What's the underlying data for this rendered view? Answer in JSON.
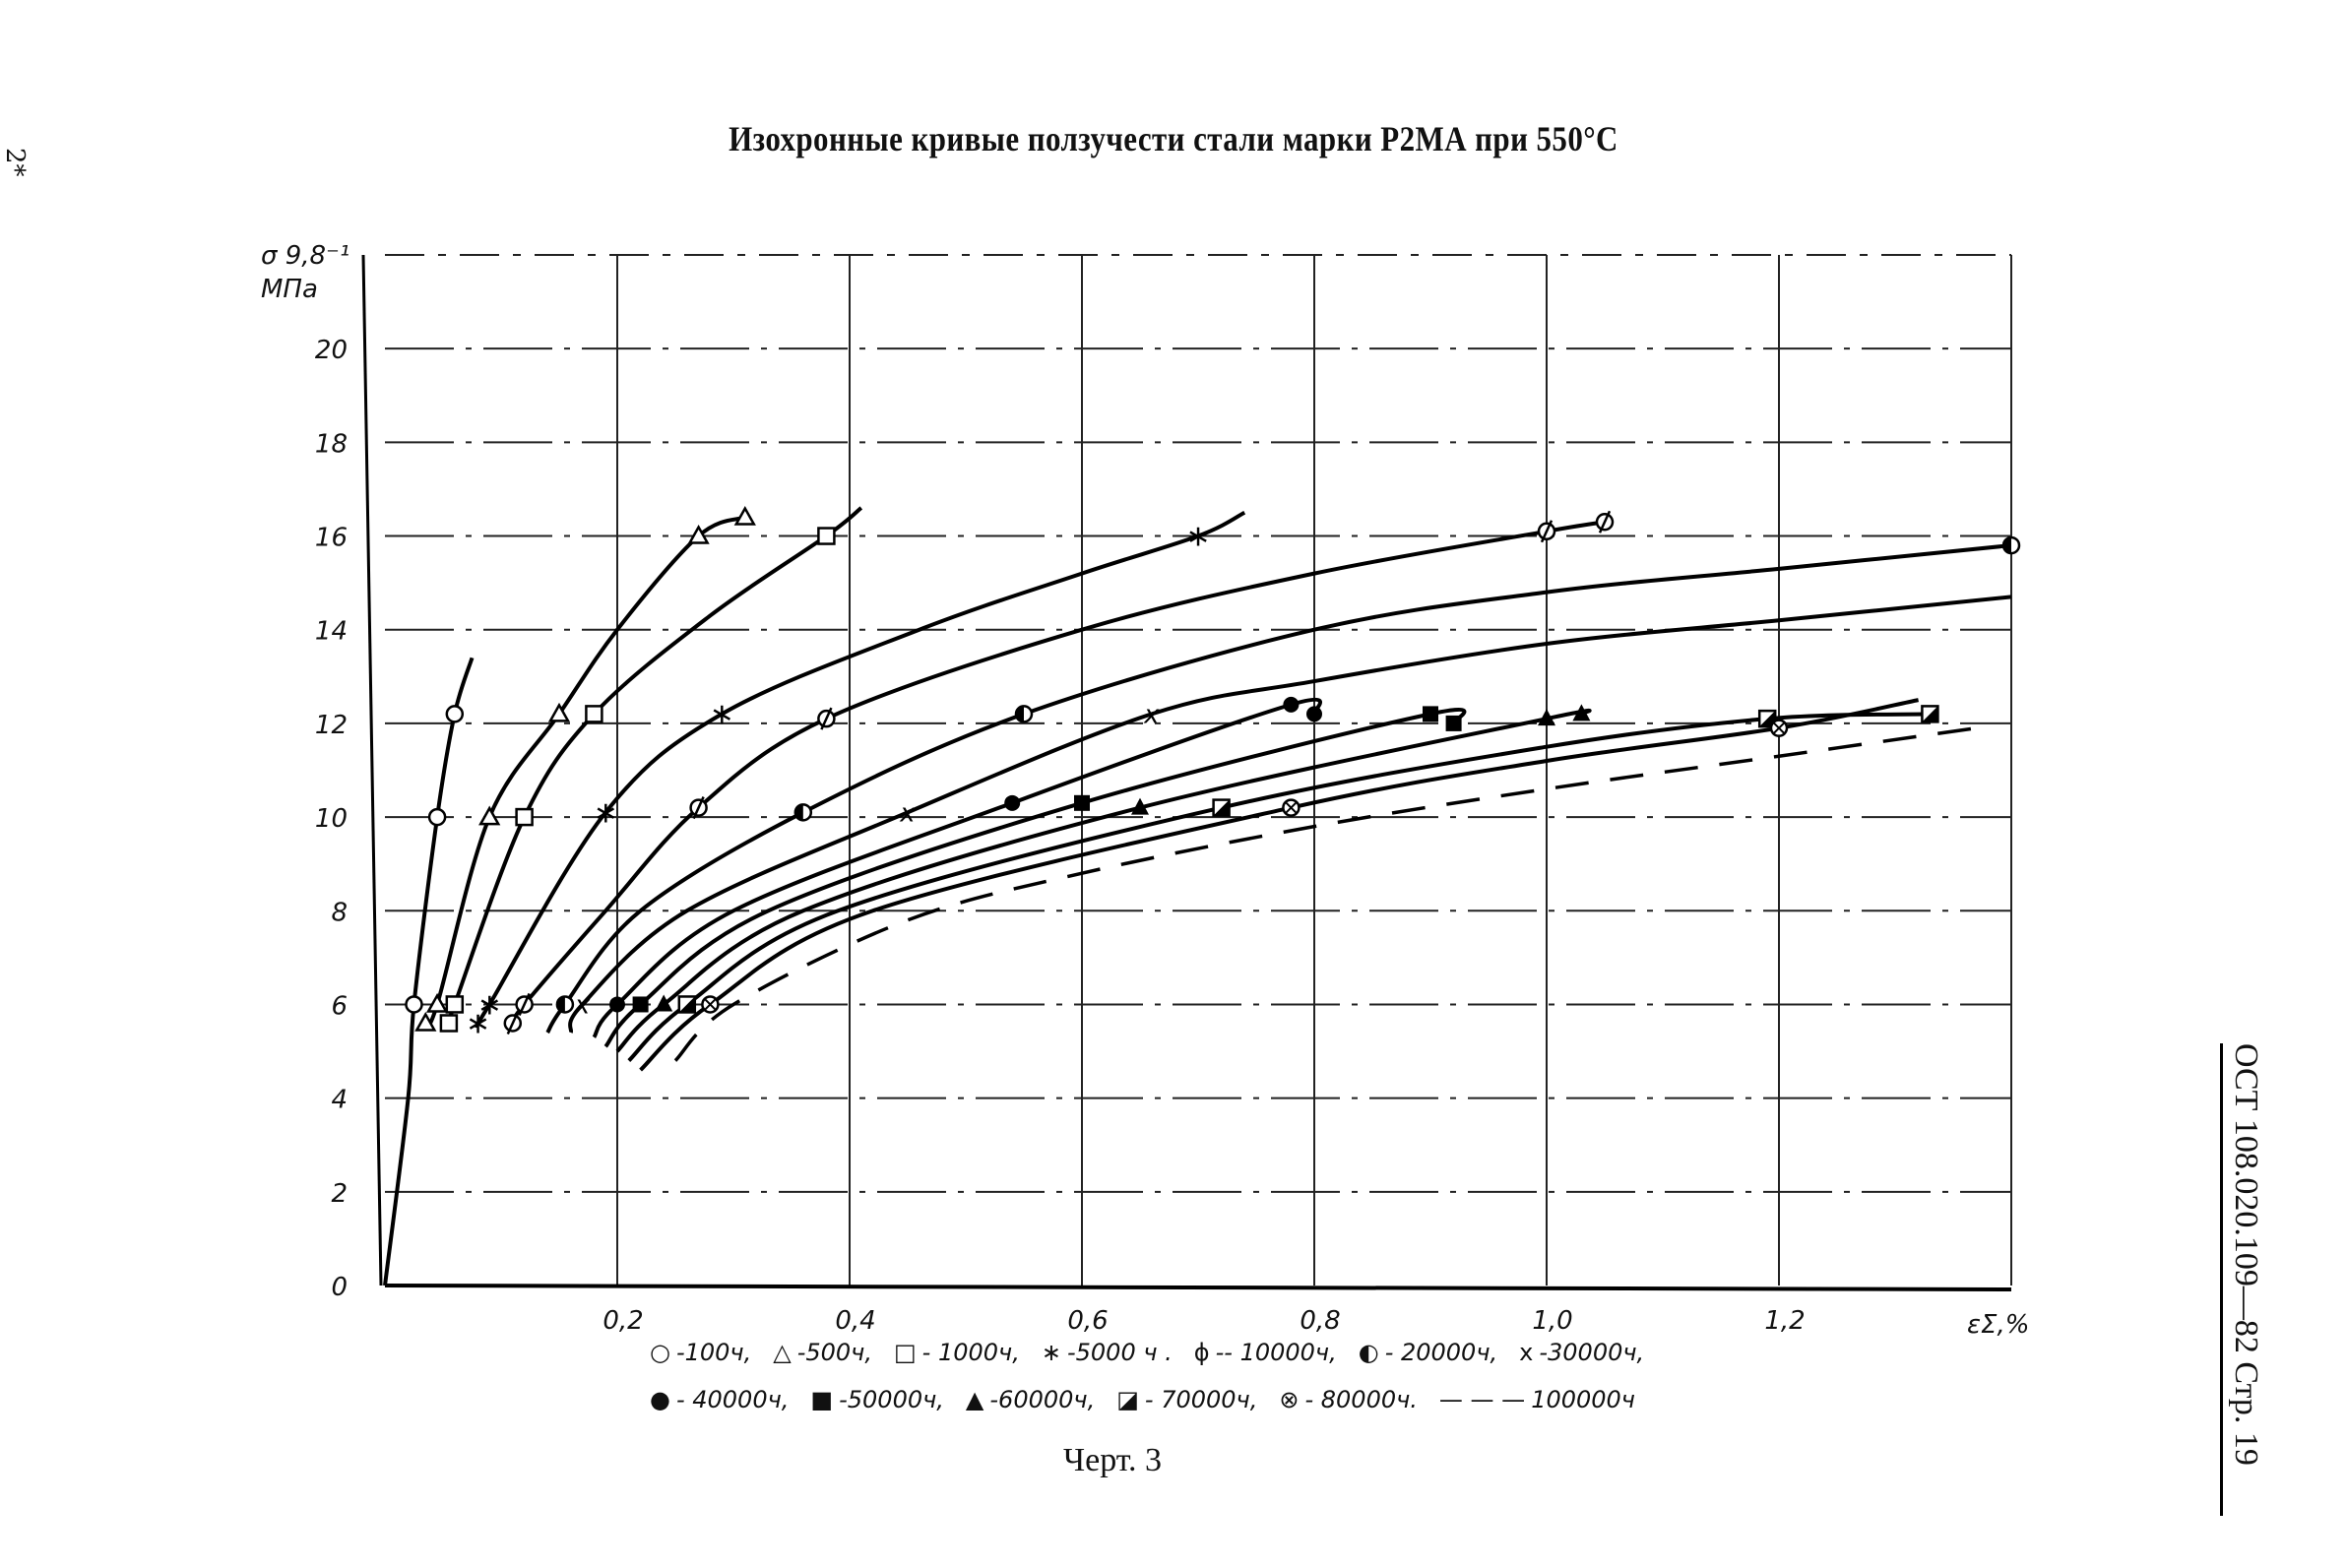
{
  "page": {
    "title": "Изохронные кривые ползучести стали марки Р2МА при 550°С",
    "side_mark": "2*",
    "doc_code": "ОСТ 108.020.109—82 Стр. 19",
    "caption": "Черт. 3"
  },
  "legend": {
    "row1": [
      {
        "symbol": "○",
        "label": "-100ч,"
      },
      {
        "symbol": "△",
        "label": "-500ч,"
      },
      {
        "symbol": "□",
        "label": "- 1000ч,"
      },
      {
        "symbol": "∗",
        "label": "-5000 ч ."
      },
      {
        "symbol": "ϕ",
        "label": "-- 10000ч,"
      },
      {
        "symbol": "◐",
        "label": "- 20000ч,"
      },
      {
        "symbol": "x",
        "label": "-30000ч,"
      }
    ],
    "row2": [
      {
        "symbol": "●",
        "label": "- 40000ч,"
      },
      {
        "symbol": "■",
        "label": "-50000ч,"
      },
      {
        "symbol": "▲",
        "label": "-60000ч,"
      },
      {
        "symbol": "◪",
        "label": "- 70000ч,"
      },
      {
        "symbol": "⊗",
        "label": "- 80000ч."
      },
      {
        "symbol": "— — —",
        "label": "100000ч"
      }
    ]
  },
  "chart_data": {
    "type": "line",
    "title": "Изохронные кривые ползучести стали марки Р2МА при 550°С",
    "xlabel": "εΣ,%",
    "ylabel": "σ 9,8⁻¹ МПа",
    "xlim": [
      0,
      1.4
    ],
    "ylim": [
      0,
      22
    ],
    "x_ticks": [
      "0,2",
      "0,4",
      "0,6",
      "0,8",
      "1,0",
      "1,2"
    ],
    "x_tick_values": [
      0.2,
      0.4,
      0.6,
      0.8,
      1.0,
      1.2
    ],
    "y_ticks": [
      "0",
      "2",
      "4",
      "6",
      "8",
      "10",
      "12",
      "14",
      "16",
      "18",
      "20"
    ],
    "y_tick_values": [
      0,
      2,
      4,
      6,
      8,
      10,
      12,
      14,
      16,
      18,
      20
    ],
    "grid": true,
    "series": [
      {
        "name": "100ч",
        "marker": "circle-open",
        "points": [
          [
            0.0,
            0
          ],
          [
            0.02,
            4
          ],
          [
            0.025,
            6
          ],
          [
            0.045,
            10
          ],
          [
            0.06,
            12.2
          ],
          [
            0.075,
            13.4
          ]
        ]
      },
      {
        "name": "500ч",
        "marker": "triangle-open",
        "points": [
          [
            0.035,
            5.6
          ],
          [
            0.045,
            6
          ],
          [
            0.09,
            10
          ],
          [
            0.15,
            12.2
          ],
          [
            0.2,
            14
          ],
          [
            0.27,
            16
          ],
          [
            0.31,
            16.4
          ]
        ]
      },
      {
        "name": "1000ч",
        "marker": "square-open",
        "points": [
          [
            0.055,
            5.6
          ],
          [
            0.06,
            6
          ],
          [
            0.12,
            10
          ],
          [
            0.18,
            12.2
          ],
          [
            0.28,
            14.3
          ],
          [
            0.38,
            16
          ],
          [
            0.41,
            16.6
          ]
        ]
      },
      {
        "name": "5000ч",
        "marker": "star",
        "points": [
          [
            0.08,
            5.6
          ],
          [
            0.09,
            6
          ],
          [
            0.19,
            10.1
          ],
          [
            0.29,
            12.2
          ],
          [
            0.46,
            14
          ],
          [
            0.6,
            15.2
          ],
          [
            0.7,
            16
          ],
          [
            0.74,
            16.5
          ]
        ]
      },
      {
        "name": "10000ч",
        "marker": "phi",
        "points": [
          [
            0.11,
            5.6
          ],
          [
            0.12,
            6
          ],
          [
            0.19,
            8
          ],
          [
            0.27,
            10.2
          ],
          [
            0.38,
            12.1
          ],
          [
            0.6,
            14
          ],
          [
            0.8,
            15.2
          ],
          [
            1.0,
            16.1
          ],
          [
            1.05,
            16.3
          ]
        ]
      },
      {
        "name": "20000ч",
        "marker": "half-circle",
        "points": [
          [
            0.14,
            5.4
          ],
          [
            0.155,
            6
          ],
          [
            0.22,
            8
          ],
          [
            0.36,
            10.1
          ],
          [
            0.55,
            12.2
          ],
          [
            0.8,
            14
          ],
          [
            1.0,
            14.8
          ],
          [
            1.2,
            15.3
          ],
          [
            1.4,
            15.8
          ]
        ]
      },
      {
        "name": "30000ч",
        "marker": "x",
        "points": [
          [
            0.16,
            5.4
          ],
          [
            0.17,
            6
          ],
          [
            0.26,
            8
          ],
          [
            0.45,
            10.1
          ],
          [
            0.66,
            12.2
          ],
          [
            0.8,
            12.9
          ],
          [
            1.0,
            13.7
          ],
          [
            1.2,
            14.2
          ],
          [
            1.4,
            14.7
          ]
        ]
      },
      {
        "name": "40000ч",
        "marker": "circle-filled",
        "points": [
          [
            0.18,
            5.3
          ],
          [
            0.2,
            6
          ],
          [
            0.3,
            8
          ],
          [
            0.54,
            10.3
          ],
          [
            0.78,
            12.4
          ],
          [
            0.8,
            12.2
          ]
        ]
      },
      {
        "name": "50000ч",
        "marker": "square-filled",
        "points": [
          [
            0.19,
            5.1
          ],
          [
            0.22,
            6
          ],
          [
            0.33,
            8
          ],
          [
            0.6,
            10.3
          ],
          [
            0.9,
            12.2
          ],
          [
            0.92,
            12.0
          ]
        ]
      },
      {
        "name": "60000ч",
        "marker": "triangle-filled",
        "points": [
          [
            0.2,
            5.0
          ],
          [
            0.24,
            6
          ],
          [
            0.36,
            8
          ],
          [
            0.65,
            10.2
          ],
          [
            1.0,
            12.1
          ],
          [
            1.03,
            12.2
          ]
        ]
      },
      {
        "name": "70000ч",
        "marker": "square-half",
        "points": [
          [
            0.21,
            4.8
          ],
          [
            0.26,
            6
          ],
          [
            0.39,
            8
          ],
          [
            0.72,
            10.2
          ],
          [
            1.0,
            11.5
          ],
          [
            1.19,
            12.1
          ],
          [
            1.33,
            12.2
          ]
        ]
      },
      {
        "name": "80000ч",
        "marker": "circle-cross",
        "points": [
          [
            0.22,
            4.6
          ],
          [
            0.28,
            6
          ],
          [
            0.42,
            8
          ],
          [
            0.78,
            10.2
          ],
          [
            1.0,
            11.2
          ],
          [
            1.2,
            11.9
          ],
          [
            1.32,
            12.5
          ]
        ]
      },
      {
        "name": "100000ч",
        "marker": "dashed",
        "points": [
          [
            0.25,
            4.8
          ],
          [
            0.3,
            6
          ],
          [
            0.45,
            7.8
          ],
          [
            0.6,
            8.8
          ],
          [
            0.8,
            9.8
          ],
          [
            1.0,
            10.6
          ],
          [
            1.2,
            11.3
          ],
          [
            1.37,
            11.9
          ]
        ]
      }
    ],
    "reference_levels": [
      6,
      10,
      12,
      16
    ],
    "legend_position": "bottom"
  }
}
